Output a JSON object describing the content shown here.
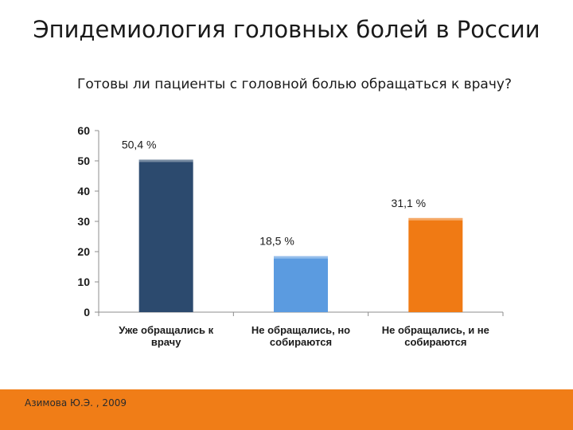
{
  "slide": {
    "title": "Эпидемиология головных болей в России",
    "footer": "Азимова Ю.Э. , 2009",
    "footer_color": "#f07d17"
  },
  "chart_data": {
    "type": "bar",
    "title": "Готовы ли пациенты с головной болью обращаться к врачу?",
    "xlabel": "",
    "ylabel": "",
    "ylim": [
      0,
      60
    ],
    "yticks": [
      0,
      10,
      20,
      30,
      40,
      50,
      60
    ],
    "grid": false,
    "categories": [
      [
        "Уже обращались к",
        "врачу"
      ],
      [
        "Не обращались, но",
        "собираются"
      ],
      [
        "Не обращались, и не",
        "собираются"
      ]
    ],
    "values": [
      50.4,
      18.5,
      31.1
    ],
    "data_labels": [
      "50,4 %",
      "18,5 %",
      "31,1 %"
    ],
    "colors": [
      "#2c4a6e",
      "#5b9be0",
      "#f07a14"
    ]
  }
}
